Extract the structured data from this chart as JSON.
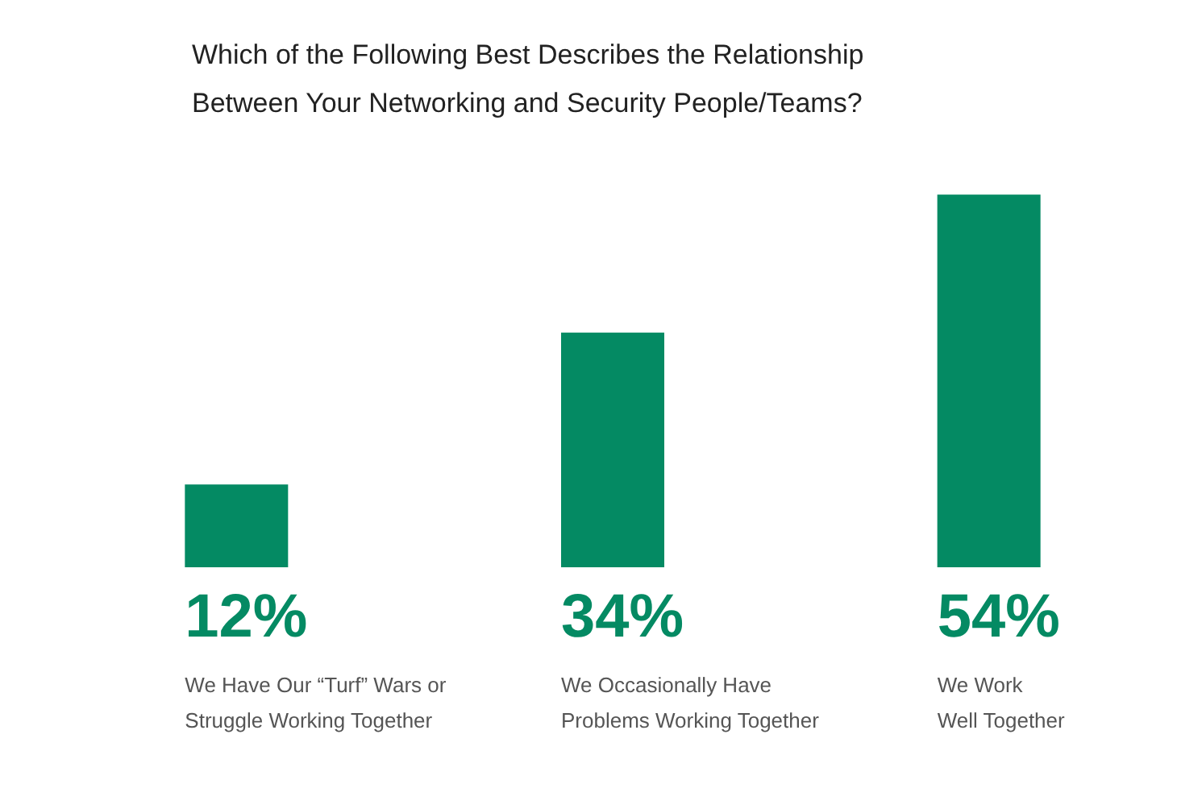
{
  "chart_data": {
    "type": "bar",
    "title": "Which of the Following Best Describes the Relationship\nBetween Your Networking and Security People/Teams?",
    "categories": [
      "We Have Our “Turf” Wars or\nStruggle Working Together",
      "We Occasionally Have\nProblems Working Together",
      "We Work\nWell Together"
    ],
    "values": [
      12,
      34,
      54
    ],
    "color": "#048a63",
    "value_labels": [
      "12%",
      "34%",
      "54%"
    ]
  }
}
